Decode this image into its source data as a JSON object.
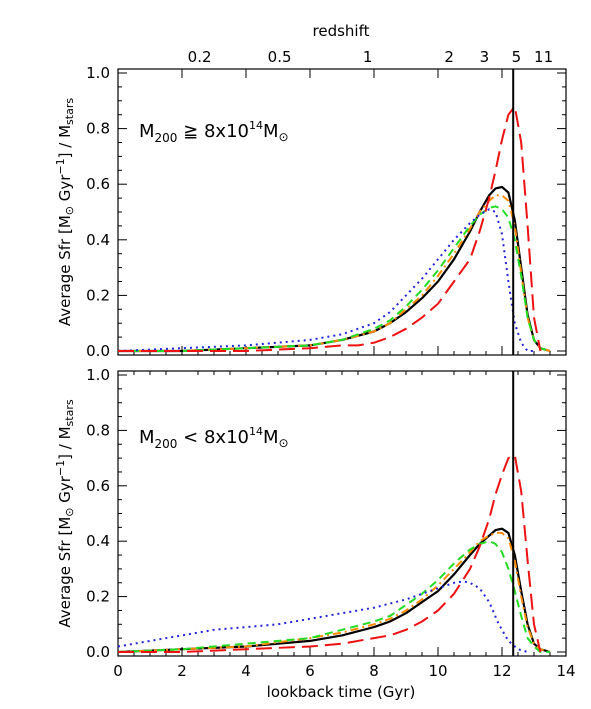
{
  "chart_data": [
    {
      "type": "line",
      "panel": "top",
      "annotation": {
        "prefix": "M",
        "sub": "200",
        "relation": " ≧ 8x10",
        "sup": "14",
        "suffix": "M",
        "solar": "⊙"
      },
      "ylabel": {
        "main": "Average Sfr [M",
        "solar": "⊙",
        "mid": " Gyr",
        "sup": "−1",
        "end": "] / M",
        "sub": "stars"
      },
      "xlim": [
        0,
        14
      ],
      "ylim": [
        0,
        1.0
      ],
      "vline": 12.35,
      "series": [
        {
          "color": "#000000",
          "dash": "solid",
          "x": [
            0,
            2,
            4,
            6,
            7,
            8,
            8.5,
            9,
            9.5,
            10,
            10.5,
            11,
            11.3,
            11.6,
            11.8,
            12.0,
            12.2,
            12.4,
            12.6,
            12.8,
            13.0,
            13.2,
            13.5
          ],
          "y": [
            0.0,
            0.0,
            0.01,
            0.02,
            0.04,
            0.07,
            0.1,
            0.14,
            0.19,
            0.25,
            0.33,
            0.43,
            0.5,
            0.56,
            0.585,
            0.59,
            0.57,
            0.47,
            0.3,
            0.13,
            0.04,
            0.01,
            0.0
          ]
        },
        {
          "color": "#ff8c00",
          "dash": "dashdot",
          "x": [
            0,
            2,
            4,
            6,
            7,
            8,
            8.5,
            9,
            9.5,
            10,
            10.5,
            11,
            11.3,
            11.6,
            11.8,
            12.0,
            12.2,
            12.4,
            12.6,
            12.8,
            13.0,
            13.2,
            13.5
          ],
          "y": [
            0.0,
            0.0,
            0.01,
            0.02,
            0.04,
            0.07,
            0.1,
            0.15,
            0.2,
            0.27,
            0.35,
            0.44,
            0.5,
            0.54,
            0.56,
            0.56,
            0.54,
            0.45,
            0.28,
            0.12,
            0.04,
            0.01,
            0.0
          ]
        },
        {
          "color": "#22dd22",
          "dash": "dashed",
          "x": [
            0,
            2,
            4,
            6,
            7,
            8,
            8.5,
            9,
            9.5,
            10,
            10.5,
            11,
            11.3,
            11.6,
            11.8,
            12.0,
            12.2,
            12.4,
            12.6,
            12.8,
            13.0,
            13.2,
            13.5
          ],
          "y": [
            0.0,
            0.0,
            0.01,
            0.02,
            0.04,
            0.08,
            0.11,
            0.16,
            0.22,
            0.29,
            0.37,
            0.45,
            0.49,
            0.515,
            0.52,
            0.51,
            0.48,
            0.4,
            0.27,
            0.12,
            0.04,
            0.01,
            0.0
          ]
        },
        {
          "color": "#2222dd",
          "dash": "dotted",
          "x": [
            0,
            2,
            4,
            6,
            7,
            8,
            8.5,
            9,
            9.5,
            10,
            10.5,
            11,
            11.3,
            11.6,
            11.8,
            12.0,
            12.2,
            12.4,
            12.6,
            12.8,
            13.0
          ],
          "y": [
            0.0,
            0.01,
            0.02,
            0.04,
            0.06,
            0.1,
            0.14,
            0.2,
            0.26,
            0.33,
            0.4,
            0.46,
            0.49,
            0.51,
            0.5,
            0.42,
            0.25,
            0.1,
            0.03,
            0.0,
            0.0
          ]
        },
        {
          "color": "#ee1111",
          "dash": "longdash",
          "x": [
            0,
            2,
            4,
            6,
            7,
            7.5,
            8,
            8.5,
            9,
            9.5,
            10,
            10.5,
            11,
            11.3,
            11.6,
            11.8,
            12.0,
            12.2,
            12.4,
            12.6,
            12.8,
            13.0,
            13.2
          ],
          "y": [
            0.0,
            0.0,
            0.0,
            0.01,
            0.02,
            0.02,
            0.03,
            0.05,
            0.08,
            0.12,
            0.17,
            0.25,
            0.33,
            0.43,
            0.55,
            0.65,
            0.76,
            0.85,
            0.88,
            0.75,
            0.45,
            0.12,
            0.0
          ]
        }
      ]
    },
    {
      "type": "line",
      "panel": "bottom",
      "annotation": {
        "prefix": "M",
        "sub": "200",
        "relation": " < 8x10",
        "sup": "14",
        "suffix": "M",
        "solar": "⊙"
      },
      "ylabel": {
        "main": "Average Sfr [M",
        "solar": "⊙",
        "mid": " Gyr",
        "sup": "−1",
        "end": "] / M",
        "sub": "stars"
      },
      "xlim": [
        0,
        14
      ],
      "ylim": [
        0,
        1.0
      ],
      "vline": 12.35,
      "series": [
        {
          "color": "#000000",
          "dash": "solid",
          "x": [
            0,
            2,
            4,
            6,
            7,
            8,
            8.5,
            9,
            9.5,
            10,
            10.5,
            11,
            11.3,
            11.6,
            11.8,
            12.0,
            12.2,
            12.4,
            12.6,
            12.8,
            13.0,
            13.2,
            13.5
          ],
          "y": [
            0.0,
            0.01,
            0.02,
            0.04,
            0.06,
            0.09,
            0.11,
            0.14,
            0.18,
            0.22,
            0.28,
            0.35,
            0.39,
            0.42,
            0.44,
            0.445,
            0.43,
            0.35,
            0.22,
            0.1,
            0.03,
            0.01,
            0.0
          ]
        },
        {
          "color": "#ff8c00",
          "dash": "dashdot",
          "x": [
            0,
            2,
            4,
            6,
            7,
            8,
            8.5,
            9,
            9.5,
            10,
            10.5,
            11,
            11.3,
            11.6,
            11.8,
            12.0,
            12.2,
            12.4,
            12.6,
            12.8,
            13.0,
            13.2,
            13.5
          ],
          "y": [
            0.0,
            0.01,
            0.02,
            0.05,
            0.07,
            0.1,
            0.12,
            0.15,
            0.19,
            0.24,
            0.3,
            0.36,
            0.4,
            0.42,
            0.43,
            0.43,
            0.41,
            0.33,
            0.2,
            0.09,
            0.03,
            0.01,
            0.0
          ]
        },
        {
          "color": "#22dd22",
          "dash": "dashed",
          "x": [
            0,
            2,
            4,
            6,
            7,
            8,
            8.5,
            9,
            9.5,
            10,
            10.5,
            11,
            11.3,
            11.6,
            11.8,
            12.0,
            12.2,
            12.4,
            12.6,
            12.8,
            13.0,
            13.2,
            13.5
          ],
          "y": [
            0.0,
            0.01,
            0.03,
            0.05,
            0.08,
            0.11,
            0.13,
            0.17,
            0.21,
            0.26,
            0.32,
            0.37,
            0.39,
            0.4,
            0.39,
            0.36,
            0.3,
            0.22,
            0.13,
            0.05,
            0.02,
            0.0,
            0.0
          ]
        },
        {
          "color": "#2222dd",
          "dash": "dotted",
          "x": [
            0,
            1,
            2,
            3,
            4,
            5,
            6,
            7,
            8,
            9,
            9.5,
            10,
            10.5,
            10.8,
            11.0,
            11.3,
            11.6,
            11.9,
            12.2,
            12.5,
            12.8
          ],
          "y": [
            0.02,
            0.04,
            0.06,
            0.08,
            0.09,
            0.1,
            0.12,
            0.14,
            0.16,
            0.19,
            0.21,
            0.23,
            0.25,
            0.255,
            0.25,
            0.23,
            0.18,
            0.1,
            0.04,
            0.01,
            0.0
          ]
        },
        {
          "color": "#ee1111",
          "dash": "longdash",
          "x": [
            0,
            2,
            4,
            6,
            7,
            8,
            8.5,
            9,
            9.5,
            10,
            10.5,
            11,
            11.3,
            11.6,
            11.8,
            12.0,
            12.2,
            12.4,
            12.6,
            12.8,
            13.0,
            13.2
          ],
          "y": [
            0.0,
            0.0,
            0.01,
            0.02,
            0.03,
            0.05,
            0.06,
            0.08,
            0.11,
            0.15,
            0.21,
            0.3,
            0.38,
            0.48,
            0.57,
            0.64,
            0.7,
            0.71,
            0.58,
            0.33,
            0.1,
            0.0
          ]
        }
      ]
    }
  ],
  "axes": {
    "xlabel": "lookback time (Gyr)",
    "xticks": [
      0,
      2,
      4,
      6,
      8,
      10,
      12,
      14
    ],
    "yticks": [
      0.0,
      0.2,
      0.4,
      0.6,
      0.8,
      1.0
    ],
    "ytick_labels": [
      "0.0",
      "0.2",
      "0.4",
      "0.6",
      "0.8",
      "1.0"
    ],
    "top_axis_title": "redshift",
    "top_ticks": [
      {
        "label": "0.2",
        "x": 2.55
      },
      {
        "label": "0.5",
        "x": 5.05
      },
      {
        "label": "1",
        "x": 7.8
      },
      {
        "label": "2",
        "x": 10.35
      },
      {
        "label": "3",
        "x": 11.45
      },
      {
        "label": "5",
        "x": 12.45
      },
      {
        "label": "11",
        "x": 13.3
      }
    ]
  }
}
